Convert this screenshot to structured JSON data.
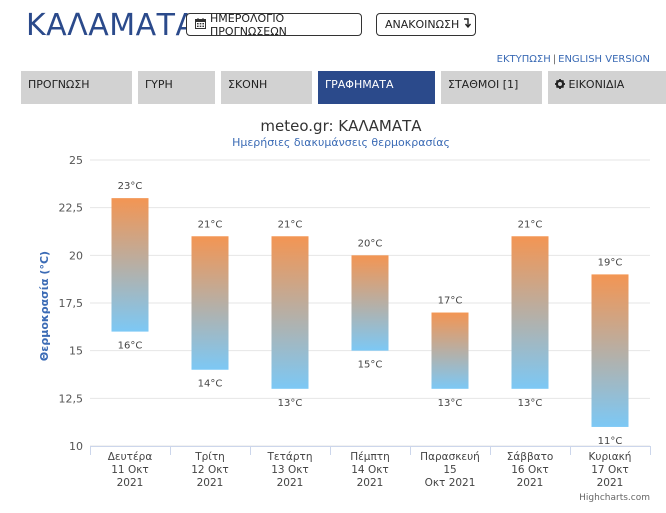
{
  "header": {
    "city": "ΚΑΛΑΜΑΤΑ",
    "forecast_calendar_label": "ΗΜΕΡΟΛΟΓΙΟ ΠΡΟΓΝΩΣΕΩΝ",
    "announcement_label": "ΑΝΑΚΟΙΝΩΣΗ"
  },
  "links": {
    "print": "ΕΚΤΥΠΩΣΗ",
    "separator": "|",
    "english": "ENGLISH VERSION"
  },
  "tabs": [
    {
      "label": "ΠΡΟΓΝΩΣΗ",
      "active": false
    },
    {
      "label": "ΓΥΡΗ",
      "active": false
    },
    {
      "label": "ΣΚΟΝΗ",
      "active": false
    },
    {
      "label": "ΓΡΑΦΗΜΑΤΑ",
      "active": true
    },
    {
      "label": "ΣΤΑΘΜΟΙ [1]",
      "active": false
    },
    {
      "label": "ΕΙΚΟΝΙΔΙΑ",
      "active": false,
      "icon": "gear-icon"
    }
  ],
  "colors": {
    "brand": "#2b4a8b",
    "bar_top": "#f39553",
    "bar_bottom": "#7cc8f5",
    "link": "#3b6bb5"
  },
  "chart_data": {
    "type": "columnrange",
    "title": "meteo.gr: ΚΑΛΑΜΑΤΑ",
    "subtitle": "Ημερήσιες διακυμάνσεις θερμοκρασίας",
    "ylabel": "Θερμοκρασία (°C)",
    "ylim": [
      10,
      25
    ],
    "yticks": [
      "10",
      "12,5",
      "15",
      "17,5",
      "20",
      "22,5",
      "25"
    ],
    "categories": [
      [
        "Δευτέρα",
        "11 Οκτ",
        "2021"
      ],
      [
        "Τρίτη",
        "12 Οκτ",
        "2021"
      ],
      [
        "Τετάρτη",
        "13 Οκτ",
        "2021"
      ],
      [
        "Πέμπτη",
        "14 Οκτ",
        "2021"
      ],
      [
        "Παρασκευή",
        "15",
        "Οκτ 2021"
      ],
      [
        "Σάββατο",
        "16 Οκτ",
        "2021"
      ],
      [
        "Κυριακή",
        "17 Οκτ",
        "2021"
      ]
    ],
    "low": [
      16,
      14,
      13,
      15,
      13,
      13,
      11
    ],
    "high": [
      23,
      21,
      21,
      20,
      17,
      21,
      19
    ],
    "unit": "°C",
    "credits": "Highcharts.com"
  }
}
